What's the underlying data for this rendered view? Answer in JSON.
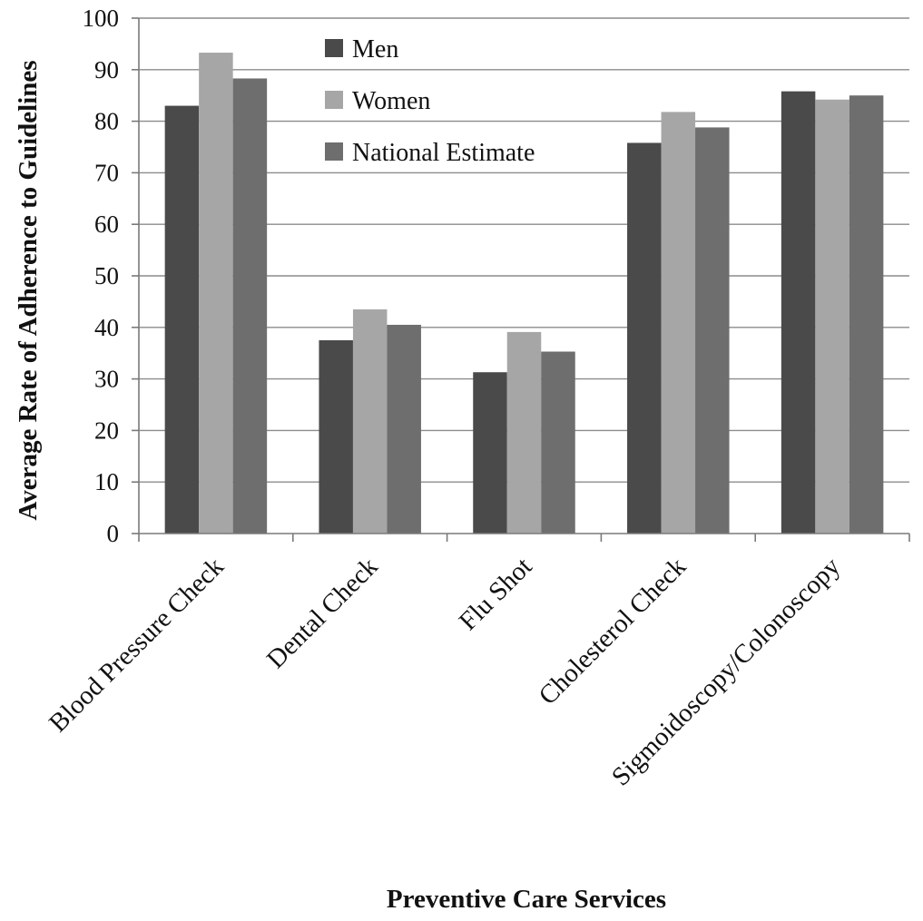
{
  "chart_data": {
    "type": "bar",
    "title": "",
    "xlabel": "Preventive Care Services",
    "ylabel": "Average Rate of Adherence to Guidelines",
    "ylim": [
      0,
      100
    ],
    "yticks": [
      0,
      10,
      20,
      30,
      40,
      50,
      60,
      70,
      80,
      90,
      100
    ],
    "grid": true,
    "legend_position": "top-center",
    "categories": [
      "Blood Pressure Check",
      "Dental Check",
      "Flu Shot",
      "Cholesterol Check",
      "Sigmoidoscopy/Colonoscopy"
    ],
    "series": [
      {
        "name": "Men",
        "color": "#4a4a4a",
        "values": [
          83,
          37.5,
          31.3,
          75.8,
          85.8
        ]
      },
      {
        "name": "Women",
        "color": "#a6a6a6",
        "values": [
          93.3,
          43.5,
          39.1,
          81.8,
          84.2
        ]
      },
      {
        "name": "National Estimate",
        "color": "#6e6e6e",
        "values": [
          88.3,
          40.5,
          35.3,
          78.8,
          85
        ]
      }
    ]
  }
}
